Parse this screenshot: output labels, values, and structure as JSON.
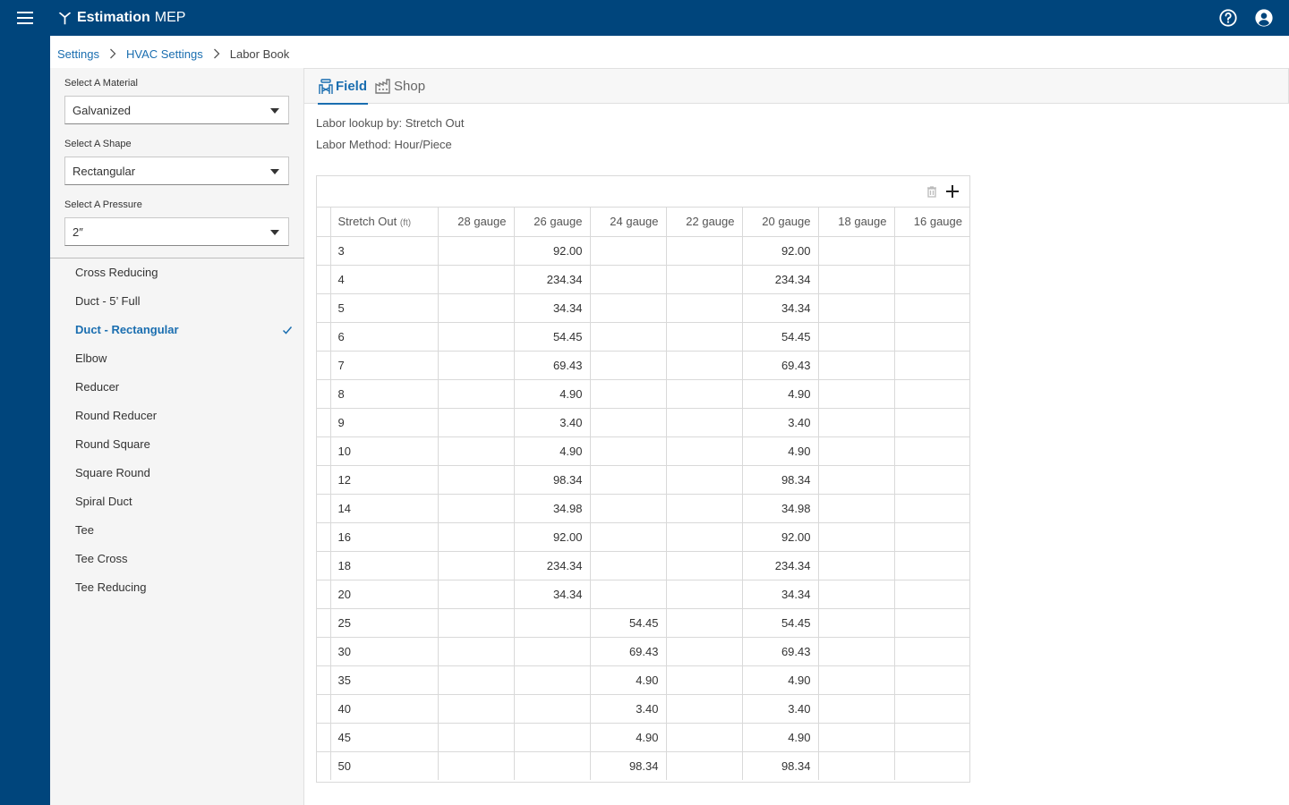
{
  "app": {
    "name": "Estimation",
    "suffix": "MEP"
  },
  "breadcrumb": {
    "items": [
      "Settings",
      "HVAC Settings"
    ],
    "current": "Labor Book"
  },
  "selectors": {
    "material": {
      "label": "Select A Material",
      "value": "Galvanized"
    },
    "shape": {
      "label": "Select A Shape",
      "value": "Rectangular"
    },
    "pressure": {
      "label": "Select A Pressure",
      "value": "2″"
    }
  },
  "items": [
    {
      "label": "Cross Reducing"
    },
    {
      "label": "Duct - 5’ Full"
    },
    {
      "label": "Duct - Rectangular",
      "selected": true
    },
    {
      "label": "Elbow"
    },
    {
      "label": "Reducer"
    },
    {
      "label": "Round Reducer"
    },
    {
      "label": "Round Square"
    },
    {
      "label": "Square Round"
    },
    {
      "label": "Spiral Duct"
    },
    {
      "label": "Tee"
    },
    {
      "label": "Tee Cross"
    },
    {
      "label": "Tee Reducing"
    }
  ],
  "tabs": {
    "field": "Field",
    "shop": "Shop",
    "active": "field"
  },
  "info": {
    "lookup": "Labor lookup by: Stretch Out",
    "method": "Labor Method: Hour/Piece"
  },
  "table": {
    "first_header": "Stretch Out",
    "first_header_unit": "(ft)",
    "columns": [
      "28 gauge",
      "26 gauge",
      "24 gauge",
      "22 gauge",
      "20 gauge",
      "18 gauge",
      "16 gauge"
    ],
    "rows": [
      [
        "3",
        "",
        "92.00",
        "",
        "",
        "92.00",
        "",
        ""
      ],
      [
        "4",
        "",
        "234.34",
        "",
        "",
        "234.34",
        "",
        ""
      ],
      [
        "5",
        "",
        "34.34",
        "",
        "",
        "34.34",
        "",
        ""
      ],
      [
        "6",
        "",
        "54.45",
        "",
        "",
        "54.45",
        "",
        ""
      ],
      [
        "7",
        "",
        "69.43",
        "",
        "",
        "69.43",
        "",
        ""
      ],
      [
        "8",
        "",
        "4.90",
        "",
        "",
        "4.90",
        "",
        ""
      ],
      [
        "9",
        "",
        "3.40",
        "",
        "",
        "3.40",
        "",
        ""
      ],
      [
        "10",
        "",
        "4.90",
        "",
        "",
        "4.90",
        "",
        ""
      ],
      [
        "12",
        "",
        "98.34",
        "",
        "",
        "98.34",
        "",
        ""
      ],
      [
        "14",
        "",
        "34.98",
        "",
        "",
        "34.98",
        "",
        ""
      ],
      [
        "16",
        "",
        "92.00",
        "",
        "",
        "92.00",
        "",
        ""
      ],
      [
        "18",
        "",
        "234.34",
        "",
        "",
        "234.34",
        "",
        ""
      ],
      [
        "20",
        "",
        "34.34",
        "",
        "",
        "34.34",
        "",
        ""
      ],
      [
        "25",
        "",
        "",
        "54.45",
        "",
        "54.45",
        "",
        ""
      ],
      [
        "30",
        "",
        "",
        "69.43",
        "",
        "69.43",
        "",
        ""
      ],
      [
        "35",
        "",
        "",
        "4.90",
        "",
        "4.90",
        "",
        ""
      ],
      [
        "40",
        "",
        "",
        "3.40",
        "",
        "3.40",
        "",
        ""
      ],
      [
        "45",
        "",
        "",
        "4.90",
        "",
        "4.90",
        "",
        ""
      ],
      [
        "50",
        "",
        "",
        "98.34",
        "",
        "98.34",
        "",
        ""
      ]
    ]
  },
  "icons": {
    "menu": "hamburger-menu-icon",
    "logo": "aircraft-logo-icon",
    "help": "help-circle-icon",
    "account": "account-circle-icon",
    "check": "checkmark-icon",
    "field_tab": "field-worker-icon",
    "shop_tab": "factory-icon",
    "delete": "trash-icon",
    "add": "plus-icon"
  },
  "colors": {
    "brand": "#00457c",
    "accent": "#1a6eb0",
    "panel": "#f5f5f5"
  }
}
